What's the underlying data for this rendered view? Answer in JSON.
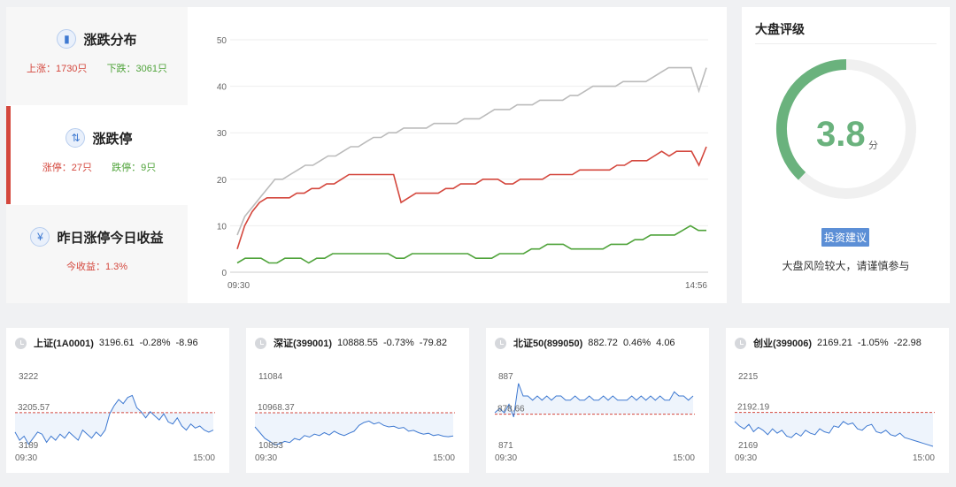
{
  "tabs": [
    {
      "title": "涨跌分布",
      "icon": "bar-chart-icon",
      "stat1": "上涨：1730只",
      "stat2": "下跌：3061只"
    },
    {
      "title": "涨跌停",
      "icon": "up-down-arrows-icon",
      "stat1": "涨停：27只",
      "stat2": "跌停：9只"
    },
    {
      "title": "昨日涨停今日收益",
      "icon": "yen-icon",
      "stat1": "今收益：1.3%"
    }
  ],
  "main_chart": {
    "chart_data": {
      "type": "line",
      "title": "",
      "xlabel": "",
      "ylabel": "",
      "x_range": [
        "09:30",
        "14:56"
      ],
      "x_ticks": [
        "09:30",
        "14:56"
      ],
      "y_ticks": [
        0,
        10,
        20,
        30,
        40,
        50
      ],
      "ylim": [
        0,
        50
      ],
      "grid": true,
      "series": [
        {
          "color": "#bbbbbb",
          "values": [
            8,
            12,
            14,
            16,
            18,
            20,
            20,
            21,
            22,
            23,
            23,
            24,
            25,
            25,
            26,
            27,
            27,
            28,
            29,
            29,
            30,
            30,
            31,
            31,
            31,
            31,
            32,
            32,
            32,
            32,
            33,
            33,
            33,
            34,
            35,
            35,
            35,
            36,
            36,
            36,
            37,
            37,
            37,
            37,
            38,
            38,
            39,
            40,
            40,
            40,
            40,
            41,
            41,
            41,
            41,
            42,
            43,
            44,
            44,
            44,
            44,
            39,
            44
          ]
        },
        {
          "color": "#d4473d",
          "values": [
            5,
            10,
            13,
            15,
            16,
            16,
            16,
            16,
            17,
            17,
            18,
            18,
            19,
            19,
            20,
            21,
            21,
            21,
            21,
            21,
            21,
            21,
            15,
            16,
            17,
            17,
            17,
            17,
            18,
            18,
            19,
            19,
            19,
            20,
            20,
            20,
            19,
            19,
            20,
            20,
            20,
            20,
            21,
            21,
            21,
            21,
            22,
            22,
            22,
            22,
            22,
            23,
            23,
            24,
            24,
            24,
            25,
            26,
            25,
            26,
            26,
            26,
            23,
            27
          ]
        },
        {
          "color": "#4fa33a",
          "values": [
            2,
            3,
            3,
            3,
            2,
            2,
            3,
            3,
            3,
            2,
            3,
            3,
            4,
            4,
            4,
            4,
            4,
            4,
            4,
            4,
            3,
            3,
            4,
            4,
            4,
            4,
            4,
            4,
            4,
            4,
            3,
            3,
            3,
            4,
            4,
            4,
            4,
            5,
            5,
            6,
            6,
            6,
            5,
            5,
            5,
            5,
            5,
            6,
            6,
            6,
            7,
            7,
            8,
            8,
            8,
            8,
            9,
            10,
            9,
            9
          ]
        }
      ]
    }
  },
  "rating": {
    "title": "大盘评级",
    "score": "3.8",
    "unit": "分",
    "score_fraction": 0.38,
    "arc_color": "#6ab27d",
    "advice_label": "投资建议",
    "advice_text": "大盘风险较大，请谨慎参与"
  },
  "indices": [
    {
      "name": "上证(1A0001)",
      "value": "3196.61",
      "pct": "-0.28%",
      "chg": "-8.96",
      "high": "3222",
      "base": "3205.57",
      "low": "3189",
      "t_start": "09:30",
      "t_end": "15:00",
      "chart_data": {
        "type": "line",
        "ylim": [
          3189,
          3222
        ],
        "reference": 3205.57,
        "values": [
          3196,
          3192,
          3194,
          3190,
          3193,
          3196,
          3195,
          3191,
          3194,
          3192,
          3195,
          3193,
          3196,
          3194,
          3192,
          3197,
          3195,
          3193,
          3196,
          3194,
          3197,
          3205,
          3209,
          3212,
          3210,
          3213,
          3214,
          3208,
          3206,
          3203,
          3206,
          3204,
          3202,
          3205,
          3201,
          3200,
          3203,
          3199,
          3197,
          3200,
          3198,
          3199,
          3197,
          3196,
          3197
        ]
      }
    },
    {
      "name": "深证(399001)",
      "value": "10888.55",
      "pct": "-0.73%",
      "chg": "-79.82",
      "high": "11084",
      "base": "10968.37",
      "low": "10853",
      "t_start": "09:30",
      "t_end": "15:00",
      "chart_data": {
        "type": "line",
        "ylim": [
          10853,
          11084
        ],
        "reference": 10968.37,
        "values": [
          10920,
          10900,
          10880,
          10870,
          10858,
          10862,
          10870,
          10866,
          10880,
          10875,
          10890,
          10885,
          10895,
          10890,
          10900,
          10892,
          10905,
          10896,
          10890,
          10898,
          10905,
          10925,
          10935,
          10940,
          10930,
          10935,
          10925,
          10920,
          10922,
          10915,
          10918,
          10905,
          10908,
          10900,
          10895,
          10898,
          10890,
          10893,
          10888,
          10886,
          10889
        ]
      }
    },
    {
      "name": "北证50(899050)",
      "value": "882.72",
      "pct": "0.46%",
      "chg": "4.06",
      "high": "887",
      "base": "878.66",
      "low": "871",
      "t_start": "09:30",
      "t_end": "15:00",
      "chart_data": {
        "type": "line",
        "ylim": [
          871,
          887
        ],
        "reference": 878.66,
        "values": [
          879,
          880,
          879,
          881,
          878,
          886,
          883,
          883,
          882,
          883,
          882,
          883,
          882,
          883,
          883,
          882,
          882,
          883,
          882,
          882,
          883,
          882,
          882,
          883,
          882,
          883,
          882,
          882,
          882,
          883,
          882,
          883,
          882,
          883,
          882,
          883,
          882,
          882,
          884,
          883,
          883,
          882,
          883
        ]
      }
    },
    {
      "name": "创业(399006)",
      "value": "2169.21",
      "pct": "-1.05%",
      "chg": "-22.98",
      "high": "2215",
      "base": "2192.19",
      "low": "2169",
      "t_start": "09:30",
      "t_end": "15:00",
      "chart_data": {
        "type": "line",
        "ylim": [
          2169,
          2215
        ],
        "reference": 2192.19,
        "values": [
          2186,
          2183,
          2181,
          2184,
          2179,
          2182,
          2180,
          2177,
          2181,
          2178,
          2180,
          2176,
          2175,
          2178,
          2176,
          2180,
          2178,
          2177,
          2181,
          2179,
          2178,
          2183,
          2182,
          2186,
          2184,
          2185,
          2181,
          2180,
          2183,
          2184,
          2179,
          2178,
          2180,
          2177,
          2176,
          2178,
          2175,
          2174,
          2173,
          2172,
          2171,
          2170,
          2169
        ]
      }
    }
  ]
}
